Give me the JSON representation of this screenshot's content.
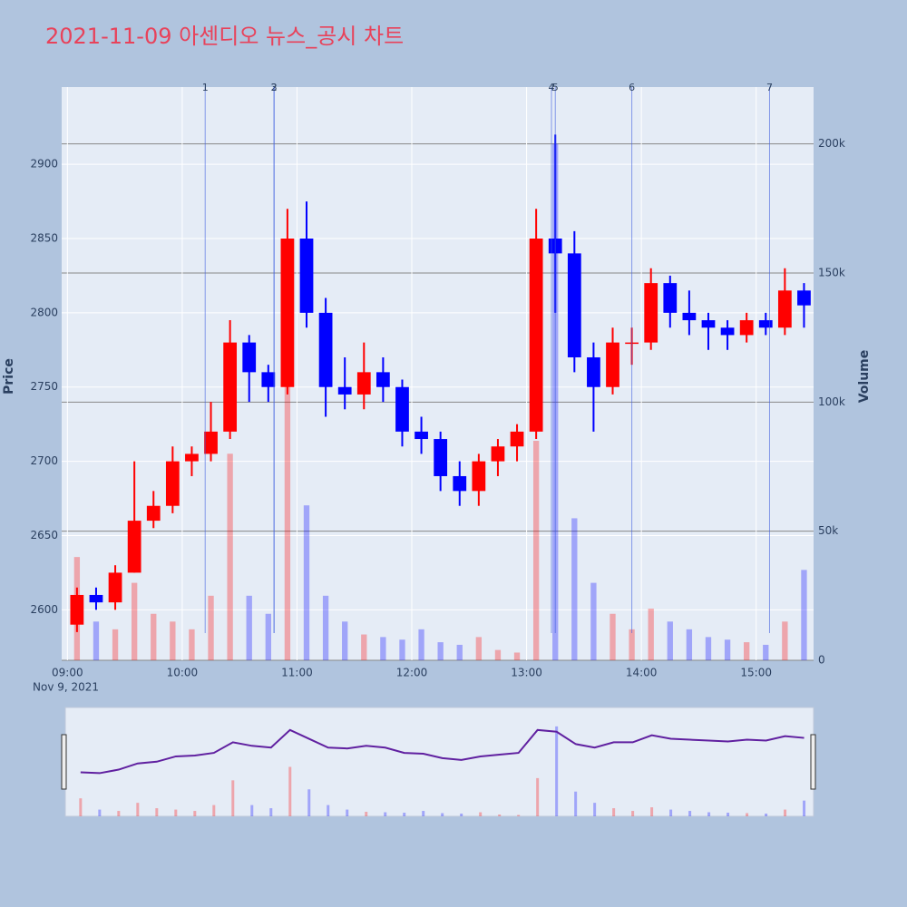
{
  "chart_data": {
    "type": "candlestick",
    "title": "2021-11-09 아센디오 뉴스_공시 차트",
    "y_label": "Price",
    "y2_label": "Volume",
    "date_label": "Nov 9, 2021",
    "up_color": "#ff0000",
    "down_color": "#0000ff",
    "x": [
      "09:00",
      "09:10",
      "09:20",
      "09:30",
      "09:40",
      "09:50",
      "10:00",
      "10:10",
      "10:20",
      "10:30",
      "10:40",
      "10:50",
      "11:00",
      "11:10",
      "11:20",
      "11:30",
      "11:40",
      "11:50",
      "12:00",
      "12:10",
      "12:20",
      "12:30",
      "12:40",
      "12:50",
      "13:00",
      "13:10",
      "13:20",
      "13:30",
      "13:40",
      "13:50",
      "14:00",
      "14:10",
      "14:20",
      "14:30",
      "14:40",
      "14:50",
      "15:00",
      "15:10",
      "15:20"
    ],
    "open": [
      2590,
      2610,
      2605,
      2625,
      2660,
      2670,
      2700,
      2705,
      2720,
      2780,
      2760,
      2750,
      2850,
      2800,
      2750,
      2745,
      2760,
      2750,
      2720,
      2715,
      2690,
      2680,
      2700,
      2710,
      2720,
      2850,
      2840,
      2770,
      2750,
      2780,
      2780,
      2820,
      2800,
      2795,
      2790,
      2785,
      2795,
      2790,
      2815
    ],
    "high": [
      2615,
      2615,
      2630,
      2700,
      2680,
      2710,
      2710,
      2740,
      2795,
      2785,
      2765,
      2870,
      2875,
      2810,
      2770,
      2780,
      2770,
      2755,
      2730,
      2720,
      2700,
      2705,
      2715,
      2725,
      2870,
      2920,
      2855,
      2780,
      2790,
      2790,
      2830,
      2825,
      2815,
      2800,
      2795,
      2800,
      2800,
      2830,
      2820
    ],
    "low": [
      2585,
      2600,
      2600,
      2625,
      2655,
      2665,
      2690,
      2700,
      2715,
      2740,
      2740,
      2745,
      2790,
      2730,
      2735,
      2735,
      2740,
      2710,
      2705,
      2680,
      2670,
      2670,
      2690,
      2700,
      2715,
      2800,
      2760,
      2720,
      2745,
      2765,
      2775,
      2790,
      2785,
      2775,
      2775,
      2780,
      2785,
      2785,
      2790
    ],
    "close": [
      2610,
      2605,
      2625,
      2660,
      2670,
      2700,
      2705,
      2720,
      2780,
      2760,
      2750,
      2850,
      2800,
      2750,
      2745,
      2760,
      2750,
      2720,
      2715,
      2690,
      2680,
      2700,
      2710,
      2720,
      2850,
      2840,
      2770,
      2750,
      2780,
      2780,
      2820,
      2800,
      2795,
      2790,
      2785,
      2795,
      2790,
      2815,
      2805
    ],
    "volume": [
      40000,
      15000,
      12000,
      30000,
      18000,
      15000,
      12000,
      25000,
      80000,
      25000,
      18000,
      110000,
      60000,
      25000,
      15000,
      10000,
      9000,
      8000,
      12000,
      7000,
      6000,
      9000,
      4000,
      3000,
      85000,
      200000,
      55000,
      30000,
      18000,
      12000,
      20000,
      15000,
      12000,
      9000,
      8000,
      7000,
      6000,
      15000,
      35000
    ],
    "events": {
      "x": [
        "10:12",
        "10:48",
        "10:48",
        "13:13",
        "13:15",
        "13:55",
        "15:07"
      ],
      "labels": [
        "1",
        "2",
        "3",
        "4",
        "5",
        "6",
        "7"
      ]
    },
    "xlim": [
      "08:57",
      "15:30"
    ],
    "xticks": [
      "09:00",
      "10:00",
      "11:00",
      "12:00",
      "13:00",
      "14:00",
      "15:00"
    ],
    "ylim": [
      2566,
      2952
    ],
    "yticks": [
      2600,
      2650,
      2700,
      2750,
      2800,
      2850,
      2900
    ],
    "y2lim": [
      0,
      222000
    ],
    "y2ticks": [
      0,
      {
        "value": 50000,
        "label": "50k"
      },
      {
        "value": 100000,
        "label": "100k"
      },
      {
        "value": 150000,
        "label": "150k"
      },
      {
        "value": 200000,
        "label": "200k"
      }
    ],
    "grid": true
  }
}
